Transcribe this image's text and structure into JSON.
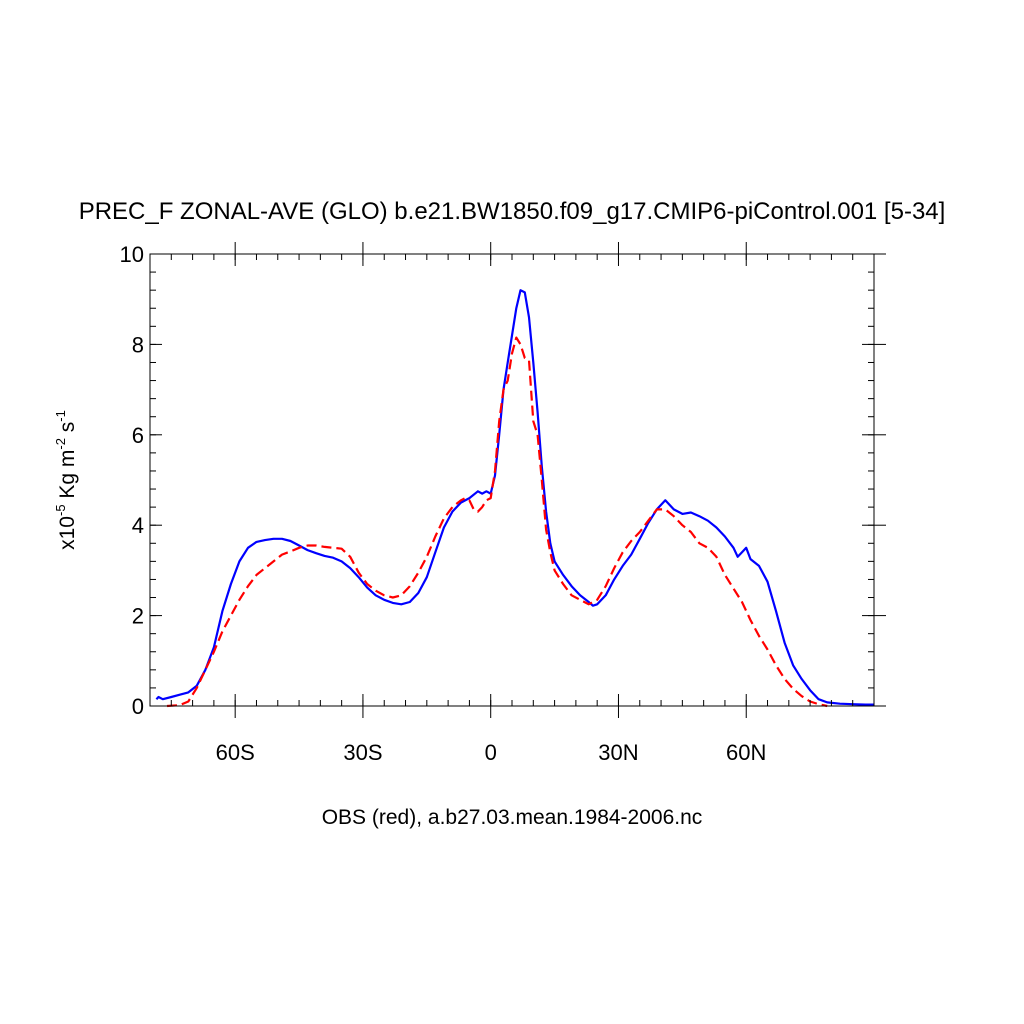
{
  "chart_data": {
    "type": "line",
    "title": "PREC_F ZONAL-AVE (GLO) b.e21.BW1850.f09_g17.CMIP6-piControl.001 [5-34]",
    "xlabel": "OBS (red), a.b27.03.mean.1984-2006.nc",
    "ylabel": {
      "prefix": "x10",
      "exp": "-5",
      "unit_a": " Kg m",
      "unit_a_exp": "-2",
      "unit_b": " s",
      "unit_b_exp": "-1"
    },
    "xlim": [
      -80,
      90
    ],
    "ylim": [
      0,
      10
    ],
    "x_ticks": [
      {
        "value": -60,
        "label": "60S"
      },
      {
        "value": -30,
        "label": "30S"
      },
      {
        "value": 0,
        "label": "0"
      },
      {
        "value": 30,
        "label": "30N"
      },
      {
        "value": 60,
        "label": "60N"
      }
    ],
    "y_ticks": [
      {
        "value": 0,
        "label": "0"
      },
      {
        "value": 2,
        "label": "2"
      },
      {
        "value": 4,
        "label": "4"
      },
      {
        "value": 6,
        "label": "6"
      },
      {
        "value": 8,
        "label": "8"
      },
      {
        "value": 10,
        "label": "10"
      }
    ],
    "grid": false,
    "series": [
      {
        "color": "#0000ff",
        "dash": "solid",
        "points": [
          [
            -78.5,
            0.15
          ],
          [
            -78,
            0.2
          ],
          [
            -77,
            0.15
          ],
          [
            -75,
            0.2
          ],
          [
            -73,
            0.25
          ],
          [
            -71,
            0.3
          ],
          [
            -69,
            0.45
          ],
          [
            -67,
            0.8
          ],
          [
            -65,
            1.3
          ],
          [
            -63,
            2.1
          ],
          [
            -61,
            2.7
          ],
          [
            -59,
            3.2
          ],
          [
            -57,
            3.5
          ],
          [
            -55,
            3.63
          ],
          [
            -53,
            3.67
          ],
          [
            -51,
            3.7
          ],
          [
            -49,
            3.7
          ],
          [
            -47,
            3.65
          ],
          [
            -45,
            3.55
          ],
          [
            -43,
            3.45
          ],
          [
            -41,
            3.38
          ],
          [
            -39,
            3.32
          ],
          [
            -37,
            3.28
          ],
          [
            -35,
            3.2
          ],
          [
            -33,
            3.05
          ],
          [
            -31,
            2.85
          ],
          [
            -29,
            2.62
          ],
          [
            -27,
            2.45
          ],
          [
            -25,
            2.35
          ],
          [
            -23,
            2.28
          ],
          [
            -21,
            2.25
          ],
          [
            -19,
            2.3
          ],
          [
            -17,
            2.5
          ],
          [
            -15,
            2.85
          ],
          [
            -13,
            3.4
          ],
          [
            -11,
            3.95
          ],
          [
            -9,
            4.3
          ],
          [
            -7,
            4.5
          ],
          [
            -5,
            4.6
          ],
          [
            -3,
            4.75
          ],
          [
            -2,
            4.7
          ],
          [
            -1,
            4.75
          ],
          [
            0,
            4.7
          ],
          [
            1,
            5.1
          ],
          [
            2,
            6.0
          ],
          [
            3,
            7.0
          ],
          [
            4,
            7.6
          ],
          [
            5,
            8.2
          ],
          [
            6,
            8.8
          ],
          [
            7,
            9.2
          ],
          [
            8,
            9.15
          ],
          [
            9,
            8.6
          ],
          [
            10,
            7.6
          ],
          [
            11,
            6.5
          ],
          [
            12,
            5.3
          ],
          [
            13,
            4.3
          ],
          [
            14,
            3.6
          ],
          [
            15,
            3.2
          ],
          [
            17,
            2.9
          ],
          [
            19,
            2.65
          ],
          [
            21,
            2.45
          ],
          [
            23,
            2.3
          ],
          [
            24,
            2.22
          ],
          [
            25,
            2.25
          ],
          [
            27,
            2.45
          ],
          [
            29,
            2.8
          ],
          [
            31,
            3.1
          ],
          [
            33,
            3.35
          ],
          [
            35,
            3.7
          ],
          [
            37,
            4.05
          ],
          [
            39,
            4.35
          ],
          [
            41,
            4.55
          ],
          [
            43,
            4.35
          ],
          [
            45,
            4.25
          ],
          [
            47,
            4.28
          ],
          [
            49,
            4.2
          ],
          [
            51,
            4.1
          ],
          [
            53,
            3.95
          ],
          [
            55,
            3.75
          ],
          [
            57,
            3.5
          ],
          [
            58,
            3.3
          ],
          [
            59,
            3.4
          ],
          [
            60,
            3.5
          ],
          [
            61,
            3.25
          ],
          [
            63,
            3.1
          ],
          [
            65,
            2.75
          ],
          [
            67,
            2.1
          ],
          [
            69,
            1.4
          ],
          [
            71,
            0.9
          ],
          [
            73,
            0.6
          ],
          [
            75,
            0.35
          ],
          [
            77,
            0.15
          ],
          [
            79,
            0.08
          ],
          [
            82,
            0.05
          ],
          [
            85,
            0.04
          ],
          [
            88,
            0.03
          ],
          [
            90,
            0.03
          ]
        ]
      },
      {
        "color": "#ff0000",
        "dash": "dashed",
        "points": [
          [
            -76,
            0.0
          ],
          [
            -73,
            0.02
          ],
          [
            -71,
            0.1
          ],
          [
            -69,
            0.4
          ],
          [
            -67,
            0.8
          ],
          [
            -65,
            1.2
          ],
          [
            -63,
            1.65
          ],
          [
            -61,
            2.0
          ],
          [
            -59,
            2.35
          ],
          [
            -57,
            2.65
          ],
          [
            -55,
            2.9
          ],
          [
            -53,
            3.05
          ],
          [
            -51,
            3.2
          ],
          [
            -49,
            3.35
          ],
          [
            -47,
            3.42
          ],
          [
            -45,
            3.5
          ],
          [
            -43,
            3.55
          ],
          [
            -41,
            3.55
          ],
          [
            -39,
            3.52
          ],
          [
            -37,
            3.5
          ],
          [
            -35,
            3.48
          ],
          [
            -33,
            3.3
          ],
          [
            -31,
            2.95
          ],
          [
            -29,
            2.7
          ],
          [
            -27,
            2.55
          ],
          [
            -25,
            2.45
          ],
          [
            -23,
            2.4
          ],
          [
            -21,
            2.45
          ],
          [
            -19,
            2.65
          ],
          [
            -17,
            2.95
          ],
          [
            -15,
            3.3
          ],
          [
            -13,
            3.75
          ],
          [
            -11,
            4.15
          ],
          [
            -9,
            4.4
          ],
          [
            -7,
            4.55
          ],
          [
            -6,
            4.6
          ],
          [
            -5,
            4.55
          ],
          [
            -4,
            4.35
          ],
          [
            -3,
            4.3
          ],
          [
            -2,
            4.4
          ],
          [
            -1,
            4.55
          ],
          [
            0,
            4.6
          ],
          [
            1,
            5.2
          ],
          [
            2,
            6.3
          ],
          [
            3,
            7.0
          ],
          [
            4,
            7.2
          ],
          [
            5,
            7.8
          ],
          [
            6,
            8.15
          ],
          [
            7,
            8.0
          ],
          [
            8,
            7.7
          ],
          [
            9,
            7.65
          ],
          [
            10,
            6.3
          ],
          [
            11,
            6.0
          ],
          [
            12,
            5.0
          ],
          [
            13,
            3.9
          ],
          [
            14,
            3.4
          ],
          [
            15,
            3.0
          ],
          [
            17,
            2.7
          ],
          [
            19,
            2.45
          ],
          [
            21,
            2.35
          ],
          [
            23,
            2.25
          ],
          [
            25,
            2.35
          ],
          [
            27,
            2.65
          ],
          [
            29,
            3.05
          ],
          [
            31,
            3.4
          ],
          [
            33,
            3.65
          ],
          [
            35,
            3.85
          ],
          [
            37,
            4.1
          ],
          [
            39,
            4.35
          ],
          [
            41,
            4.35
          ],
          [
            43,
            4.2
          ],
          [
            45,
            4.0
          ],
          [
            47,
            3.85
          ],
          [
            49,
            3.6
          ],
          [
            51,
            3.5
          ],
          [
            53,
            3.3
          ],
          [
            55,
            2.9
          ],
          [
            57,
            2.6
          ],
          [
            59,
            2.3
          ],
          [
            61,
            1.9
          ],
          [
            63,
            1.55
          ],
          [
            65,
            1.25
          ],
          [
            67,
            0.9
          ],
          [
            69,
            0.6
          ],
          [
            71,
            0.38
          ],
          [
            73,
            0.22
          ],
          [
            75,
            0.1
          ],
          [
            77,
            0.04
          ],
          [
            79,
            0.0
          ]
        ]
      }
    ]
  }
}
